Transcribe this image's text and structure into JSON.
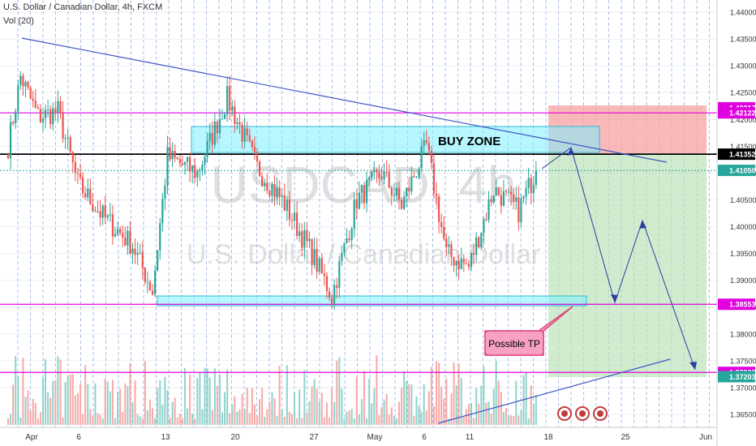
{
  "header": {
    "symbol": "U.S. Dollar / Canadian Dollar, 4h, FXCM",
    "volume_indicator": "Vol (20)"
  },
  "watermark": {
    "ticker": "USDCAD, 4h",
    "name": "U.S. Dollar / Canadian Dollar"
  },
  "annotations": {
    "buy_zone": "BUY ZONE",
    "possible_tp": "Possible TP"
  },
  "colors": {
    "bull": "#26a69a",
    "bear": "#ef5350",
    "vol_bull": "#8fd3cb",
    "vol_bear": "#f7a9a7",
    "magenta": "#e000e0",
    "trend": "#3f56c8",
    "zone": "#7ef0ff",
    "stop": "#f7a8a8",
    "target": "#b9e0b4",
    "label_fill": "#f7a1c4",
    "label_stroke": "#e0457b",
    "dashed_grid": "#8ea8dd"
  },
  "chart_data": {
    "type": "candlestick",
    "y_axis_ticks": [
      "1.44000",
      "1.43500",
      "1.43000",
      "1.42500",
      "1.42000",
      "1.41500",
      "1.41000",
      "1.40500",
      "1.40000",
      "1.39500",
      "1.39000",
      "1.38500",
      "1.38000",
      "1.37500",
      "1.37000",
      "1.36500"
    ],
    "x_axis_ticks": [
      "Apr",
      "6",
      "13",
      "20",
      "27",
      "May",
      "6",
      "11",
      "18",
      "25",
      "Jun"
    ],
    "ylim": [
      1.3625,
      1.4445
    ],
    "price_labels": [
      {
        "value": "1.42217",
        "price": 1.42217,
        "color": "#e000e0"
      },
      {
        "value": "1.42122",
        "price": 1.42122,
        "color": "#e000e0"
      },
      {
        "value": "1.41352",
        "price": 1.41352,
        "color": "#000000"
      },
      {
        "value": "1.41050",
        "price": 1.4105,
        "color": "#26a69a"
      },
      {
        "value": "1.38553",
        "price": 1.38553,
        "color": "#e000e0"
      },
      {
        "value": "1.37283",
        "price": 1.37283,
        "color": "#e000e0"
      },
      {
        "value": "1.37203",
        "price": 1.37203,
        "color": "#26a69a"
      }
    ],
    "horizontal_levels": [
      {
        "price": 1.42122,
        "color": "#e000e0"
      },
      {
        "price": 1.41352,
        "color": "#000000"
      },
      {
        "price": 1.38553,
        "color": "#e000e0"
      },
      {
        "price": 1.37283,
        "color": "#e000e0"
      }
    ],
    "last_price": 1.4105,
    "anchors": [
      {
        "bar": 0,
        "price": 1.415
      },
      {
        "bar": 5,
        "price": 1.428
      },
      {
        "bar": 12,
        "price": 1.4205
      },
      {
        "bar": 20,
        "price": 1.4215
      },
      {
        "bar": 28,
        "price": 1.408
      },
      {
        "bar": 38,
        "price": 1.402
      },
      {
        "bar": 50,
        "price": 1.3965
      },
      {
        "bar": 58,
        "price": 1.388
      },
      {
        "bar": 64,
        "price": 1.413
      },
      {
        "bar": 76,
        "price": 1.41
      },
      {
        "bar": 88,
        "price": 1.424
      },
      {
        "bar": 100,
        "price": 1.411
      },
      {
        "bar": 110,
        "price": 1.405
      },
      {
        "bar": 122,
        "price": 1.395
      },
      {
        "bar": 130,
        "price": 1.387
      },
      {
        "bar": 140,
        "price": 1.405
      },
      {
        "bar": 150,
        "price": 1.41
      },
      {
        "bar": 158,
        "price": 1.404
      },
      {
        "bar": 168,
        "price": 1.415
      },
      {
        "bar": 176,
        "price": 1.395
      },
      {
        "bar": 185,
        "price": 1.3925
      },
      {
        "bar": 195,
        "price": 1.407
      },
      {
        "bar": 205,
        "price": 1.403
      },
      {
        "bar": 212,
        "price": 1.4105
      }
    ],
    "bar_count": 213,
    "first_bar_x": 10,
    "bar_spacing": 3.07,
    "volume_base_y": 524,
    "volume_max_height": 130
  }
}
